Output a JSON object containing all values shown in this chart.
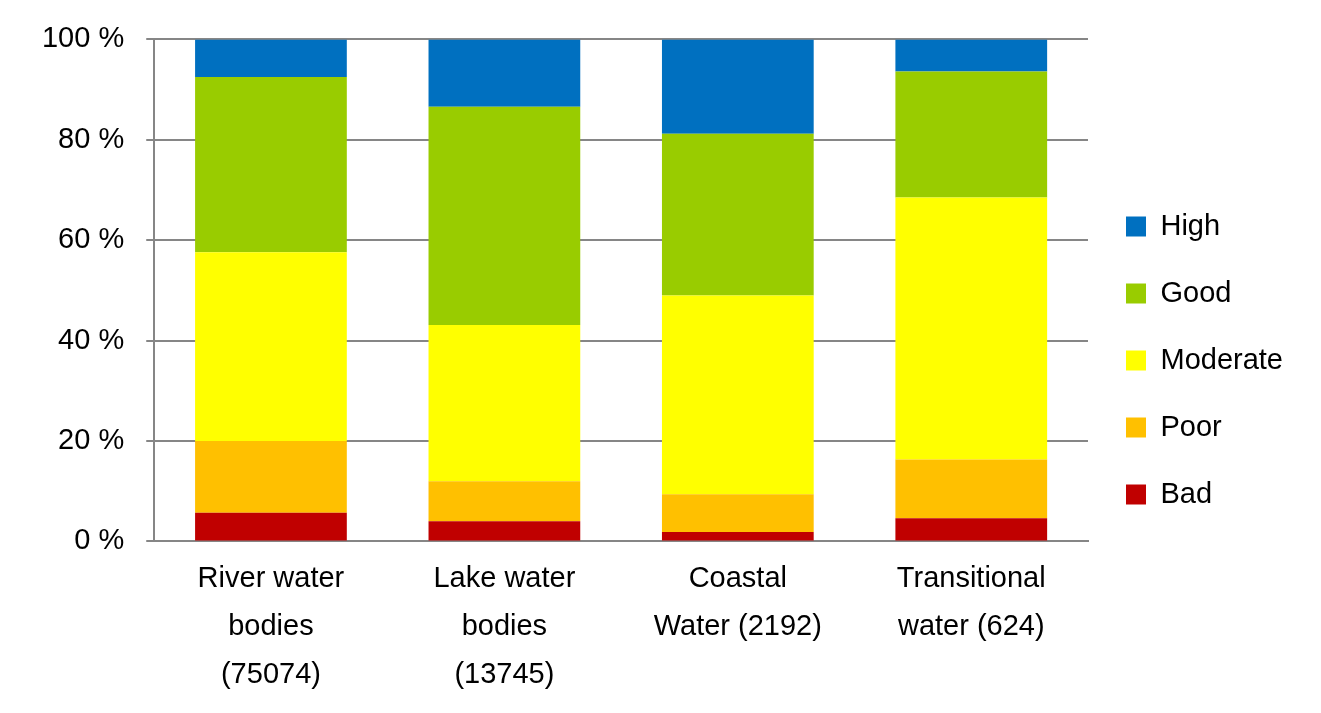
{
  "chart_data": {
    "type": "bar",
    "stacked": true,
    "categories": [
      "River water bodies (75074)",
      "Lake water bodies (13745)",
      "Coastal Water (2192)",
      "Transitional water (624)"
    ],
    "series": [
      {
        "name": "Bad",
        "color": "#c00000",
        "values": [
          5.7,
          4.0,
          1.9,
          4.6
        ]
      },
      {
        "name": "Poor",
        "color": "#ffc000",
        "values": [
          14.3,
          8.0,
          7.5,
          11.7
        ]
      },
      {
        "name": "Moderate",
        "color": "#ffff00",
        "values": [
          37.6,
          31.1,
          39.6,
          52.2
        ]
      },
      {
        "name": "Good",
        "color": "#99cc00",
        "values": [
          34.9,
          43.5,
          32.2,
          25.1
        ]
      },
      {
        "name": "High",
        "color": "#0070c0",
        "values": [
          7.5,
          13.4,
          18.8,
          6.4
        ]
      }
    ],
    "ylim": [
      0,
      100
    ],
    "yticks": [
      {
        "value": 0,
        "label": "0 %"
      },
      {
        "value": 20,
        "label": "20 %"
      },
      {
        "value": 40,
        "label": "40 %"
      },
      {
        "value": 60,
        "label": "60 %"
      },
      {
        "value": 80,
        "label": "80 %"
      },
      {
        "value": 100,
        "label": "100 %"
      }
    ],
    "grid": "y",
    "legend": "right"
  }
}
